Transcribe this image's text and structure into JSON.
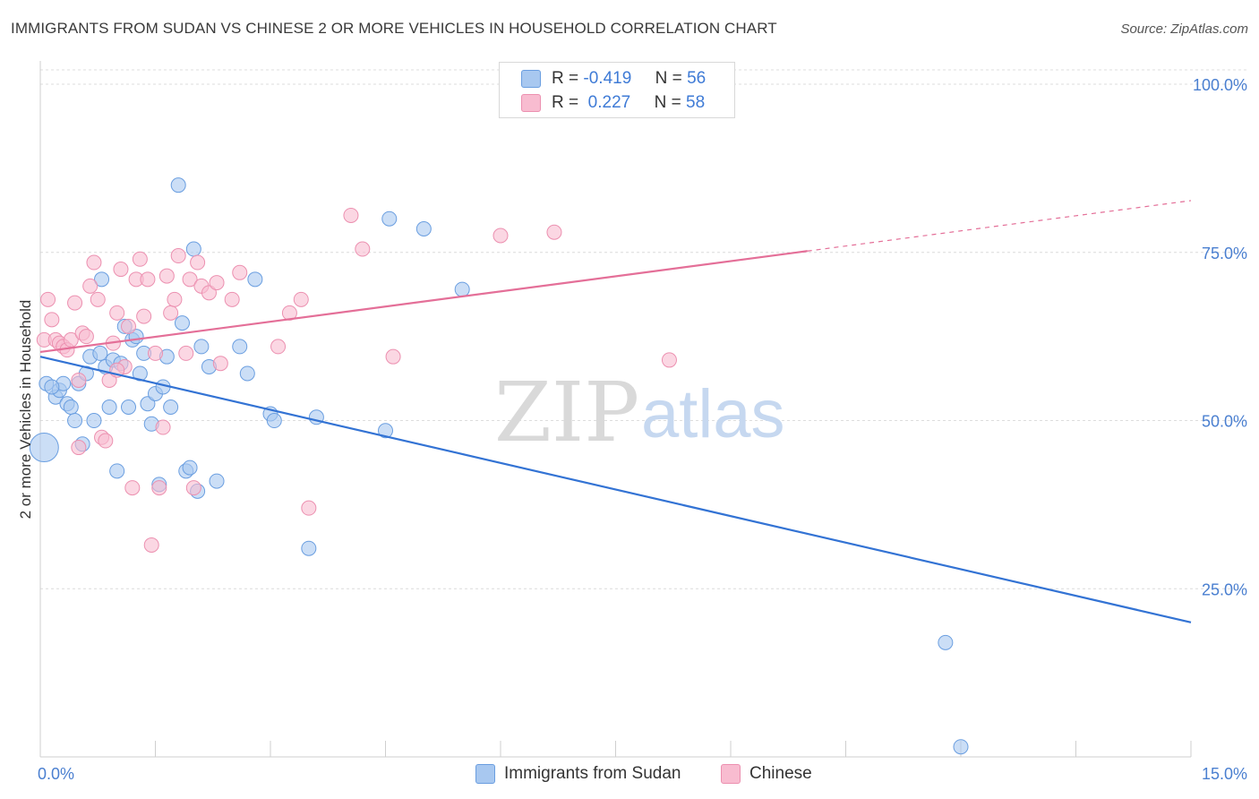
{
  "title": "IMMIGRANTS FROM SUDAN VS CHINESE 2 OR MORE VEHICLES IN HOUSEHOLD CORRELATION CHART",
  "source": "Source: ZipAtlas.com",
  "watermark": {
    "zip": "ZIP",
    "atlas": "atlas"
  },
  "legend": {
    "rows": [
      {
        "r_label": "R =",
        "r_value": "-0.419",
        "n_label": "N =",
        "n_value": "56",
        "color": "#a8c8f0"
      },
      {
        "r_label": "R =",
        "r_value": " 0.227",
        "n_label": "N =",
        "n_value": "58",
        "color": "#f8bcd0"
      }
    ]
  },
  "bottom_legend": [
    {
      "label": "Immigrants from Sudan",
      "color": "#a8c8f0"
    },
    {
      "label": "Chinese",
      "color": "#f8bcd0"
    }
  ],
  "chart_data": {
    "type": "scatter",
    "ylabel": "2 or more Vehicles in Household",
    "xlabel": "",
    "xlim": [
      0,
      15
    ],
    "ylim": [
      0,
      104
    ],
    "x_tick_labels": [
      "0.0%",
      "15.0%"
    ],
    "y_ticks": [
      25,
      50,
      75,
      100
    ],
    "y_tick_labels": [
      "25.0%",
      "50.0%",
      "75.0%",
      "100.0%"
    ],
    "grid": "horizontal dashed",
    "series": [
      {
        "name": "Immigrants from Sudan",
        "color": "#a8c8f0",
        "stroke": "#6a9ee0",
        "trend_color": "#3373d4",
        "trend": {
          "x0": 0,
          "y0": 59.5,
          "x1": 15,
          "y1": 20.0
        },
        "points": [
          [
            0.08,
            55.5
          ],
          [
            0.2,
            53.5
          ],
          [
            0.25,
            54.5
          ],
          [
            0.3,
            55.5
          ],
          [
            0.35,
            52.5
          ],
          [
            0.4,
            52.0
          ],
          [
            0.45,
            50.0
          ],
          [
            0.5,
            55.5
          ],
          [
            0.55,
            46.5
          ],
          [
            0.6,
            57.0
          ],
          [
            0.65,
            59.5
          ],
          [
            0.7,
            50.0
          ],
          [
            0.78,
            60.0
          ],
          [
            0.8,
            71.0
          ],
          [
            0.85,
            58.0
          ],
          [
            0.9,
            52.0
          ],
          [
            0.95,
            59.0
          ],
          [
            1.0,
            42.5
          ],
          [
            1.05,
            58.5
          ],
          [
            1.1,
            64.0
          ],
          [
            1.15,
            52.0
          ],
          [
            1.2,
            62.0
          ],
          [
            1.25,
            62.5
          ],
          [
            1.3,
            57.0
          ],
          [
            1.35,
            60.0
          ],
          [
            1.4,
            52.5
          ],
          [
            1.45,
            49.5
          ],
          [
            1.5,
            54.0
          ],
          [
            1.55,
            40.5
          ],
          [
            1.6,
            55.0
          ],
          [
            1.65,
            59.5
          ],
          [
            1.7,
            52.0
          ],
          [
            1.8,
            85.0
          ],
          [
            1.85,
            64.5
          ],
          [
            1.9,
            42.5
          ],
          [
            1.95,
            43.0
          ],
          [
            2.0,
            75.5
          ],
          [
            2.05,
            39.5
          ],
          [
            2.1,
            61.0
          ],
          [
            2.2,
            58.0
          ],
          [
            2.3,
            41.0
          ],
          [
            2.6,
            61.0
          ],
          [
            2.7,
            57.0
          ],
          [
            2.8,
            71.0
          ],
          [
            3.0,
            51.0
          ],
          [
            3.05,
            50.0
          ],
          [
            3.5,
            31.0
          ],
          [
            3.6,
            50.5
          ],
          [
            4.5,
            48.5
          ],
          [
            4.55,
            80.0
          ],
          [
            5.0,
            78.5
          ],
          [
            5.5,
            69.5
          ],
          [
            11.8,
            17.0
          ],
          [
            12.0,
            1.5
          ],
          [
            0.05,
            46.0
          ],
          [
            0.15,
            55.0
          ]
        ]
      },
      {
        "name": "Chinese",
        "color": "#f8bcd0",
        "stroke": "#ec90b0",
        "trend_color": "#e46f98",
        "trend": {
          "x0": 0,
          "y0": 60.2,
          "x1": 10.0,
          "y1": 75.2
        },
        "trend_dashed": {
          "x0": 10.0,
          "y0": 75.2,
          "x1": 15,
          "y1": 82.7
        },
        "points": [
          [
            0.05,
            62.0
          ],
          [
            0.1,
            68.0
          ],
          [
            0.15,
            65.0
          ],
          [
            0.2,
            62.0
          ],
          [
            0.25,
            61.5
          ],
          [
            0.3,
            61.0
          ],
          [
            0.35,
            60.5
          ],
          [
            0.4,
            62.0
          ],
          [
            0.45,
            67.5
          ],
          [
            0.5,
            56.0
          ],
          [
            0.55,
            63.0
          ],
          [
            0.6,
            62.5
          ],
          [
            0.65,
            70.0
          ],
          [
            0.7,
            73.5
          ],
          [
            0.75,
            68.0
          ],
          [
            0.8,
            47.5
          ],
          [
            0.85,
            47.0
          ],
          [
            0.9,
            56.0
          ],
          [
            0.95,
            61.5
          ],
          [
            1.0,
            66.0
          ],
          [
            1.05,
            72.5
          ],
          [
            1.1,
            58.0
          ],
          [
            1.15,
            64.0
          ],
          [
            1.2,
            40.0
          ],
          [
            1.25,
            71.0
          ],
          [
            1.3,
            74.0
          ],
          [
            1.35,
            65.5
          ],
          [
            1.4,
            71.0
          ],
          [
            1.45,
            31.5
          ],
          [
            1.5,
            60.0
          ],
          [
            1.55,
            40.0
          ],
          [
            1.6,
            49.0
          ],
          [
            1.65,
            71.5
          ],
          [
            1.7,
            66.0
          ],
          [
            1.75,
            68.0
          ],
          [
            1.8,
            74.5
          ],
          [
            1.9,
            60.0
          ],
          [
            1.95,
            71.0
          ],
          [
            2.0,
            40.0
          ],
          [
            2.05,
            73.5
          ],
          [
            2.1,
            70.0
          ],
          [
            2.2,
            69.0
          ],
          [
            2.3,
            70.5
          ],
          [
            2.35,
            58.5
          ],
          [
            2.5,
            68.0
          ],
          [
            2.6,
            72.0
          ],
          [
            3.1,
            61.0
          ],
          [
            3.25,
            66.0
          ],
          [
            3.4,
            68.0
          ],
          [
            3.5,
            37.0
          ],
          [
            4.05,
            80.5
          ],
          [
            4.2,
            75.5
          ],
          [
            4.6,
            59.5
          ],
          [
            6.0,
            77.5
          ],
          [
            6.7,
            78.0
          ],
          [
            8.2,
            59.0
          ],
          [
            0.5,
            46.0
          ],
          [
            1.0,
            57.5
          ]
        ]
      }
    ]
  }
}
